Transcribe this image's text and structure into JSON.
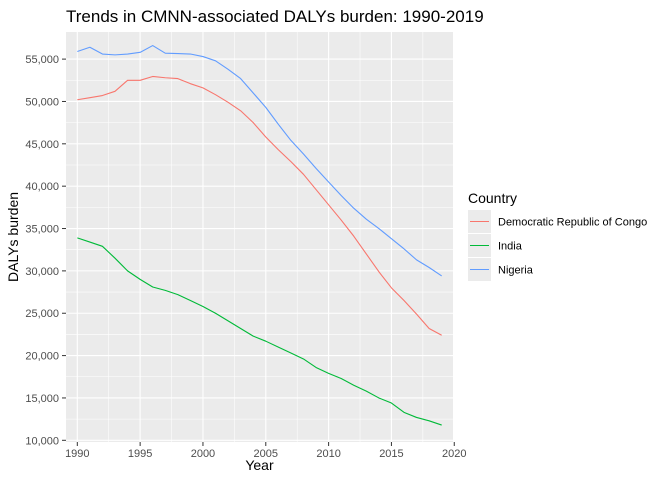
{
  "chart_data": {
    "type": "line",
    "title": "Trends in CMNN-associated DALYs burden: 1990-2019",
    "xlabel": "Year",
    "ylabel": "DALYs burden",
    "xlim": [
      1989.1,
      2019.9
    ],
    "ylim": [
      9800,
      58200
    ],
    "x_ticks": [
      1990,
      1995,
      2000,
      2005,
      2010,
      2015,
      2020
    ],
    "y_ticks": [
      10000,
      15000,
      20000,
      25000,
      30000,
      35000,
      40000,
      45000,
      50000,
      55000
    ],
    "y_tick_labels": [
      "10,000",
      "15,000",
      "20,000",
      "25,000",
      "30,000",
      "35,000",
      "40,000",
      "45,000",
      "50,000",
      "55,000"
    ],
    "grid": true,
    "legend": {
      "title": "Country",
      "placement": "right"
    },
    "x": [
      1990,
      1991,
      1992,
      1993,
      1994,
      1995,
      1996,
      1997,
      1998,
      1999,
      2000,
      2001,
      2002,
      2003,
      2004,
      2005,
      2006,
      2007,
      2008,
      2009,
      2010,
      2011,
      2012,
      2013,
      2014,
      2015,
      2016,
      2017,
      2018,
      2019
    ],
    "series": [
      {
        "name": "Democratic Republic of Congo",
        "color": "#F8766D",
        "values": [
          50200,
          50450,
          50700,
          51200,
          52500,
          52500,
          52950,
          52800,
          52700,
          52100,
          51600,
          50800,
          49900,
          48900,
          47500,
          45800,
          44300,
          42900,
          41400,
          39600,
          37800,
          36000,
          34100,
          32000,
          29900,
          28000,
          26500,
          24900,
          23200,
          22400
        ]
      },
      {
        "name": "India",
        "color": "#00BA38",
        "values": [
          33900,
          33400,
          32900,
          31500,
          30000,
          29000,
          28100,
          27700,
          27200,
          26500,
          25800,
          25000,
          24100,
          23200,
          22300,
          21700,
          21000,
          20300,
          19600,
          18600,
          17900,
          17300,
          16500,
          15800,
          15000,
          14400,
          13300,
          12700,
          12300,
          11800
        ]
      },
      {
        "name": "Nigeria",
        "color": "#619CFF",
        "values": [
          55900,
          56400,
          55600,
          55500,
          55600,
          55800,
          56600,
          55700,
          55650,
          55600,
          55300,
          54800,
          53800,
          52700,
          51000,
          49300,
          47300,
          45400,
          43800,
          42100,
          40500,
          38900,
          37400,
          36100,
          35000,
          33800,
          32600,
          31300,
          30400,
          29400
        ]
      }
    ]
  }
}
